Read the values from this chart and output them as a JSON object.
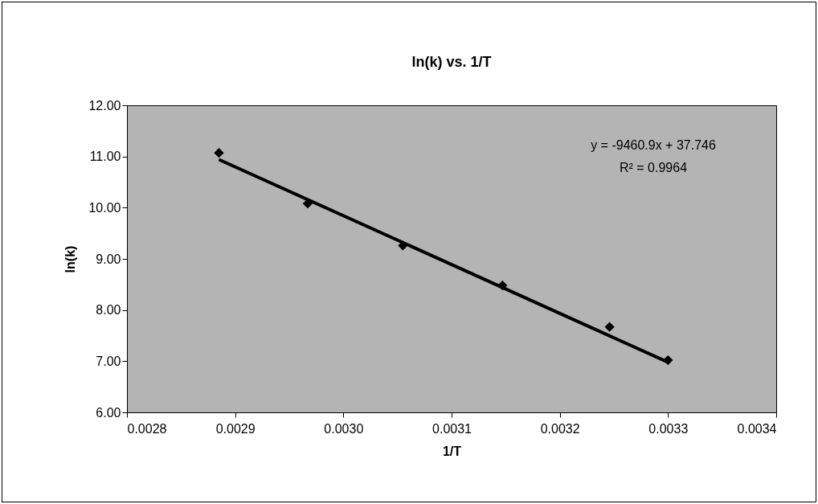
{
  "chart_data": {
    "type": "scatter",
    "title": "ln(k) vs. 1/T",
    "xlabel": "1/T",
    "ylabel": "ln(k)",
    "series": [
      {
        "color": "#000000",
        "marker": "diamond",
        "x": [
          0.002885,
          0.002967,
          0.003055,
          0.003147,
          0.003246,
          0.0033
        ],
        "values": [
          11.07,
          10.08,
          9.26,
          8.48,
          7.67,
          7.02
        ]
      },
      {
        "type": "line",
        "color": "#000000",
        "line_style": "solid",
        "x": [
          0.002885,
          0.0033
        ],
        "values": [
          10.94,
          6.98
        ]
      }
    ],
    "grid": false,
    "xlim": [
      0.0028,
      0.0034
    ],
    "ylim": [
      6,
      12
    ],
    "xticks": [
      0.0028,
      0.0029,
      {
        "value": 0.003,
        "label": "0.0030"
      },
      0.0031,
      0.0032,
      0.0033,
      0.0034
    ],
    "yticks": [
      {
        "value": 6,
        "label": "6.00"
      },
      {
        "value": 7,
        "label": "7.00"
      },
      {
        "value": 8,
        "label": "8.00"
      },
      {
        "value": 9,
        "label": "9.00"
      },
      {
        "value": 10,
        "label": "10.00"
      },
      {
        "value": 11,
        "label": "11.00"
      },
      {
        "value": 12,
        "label": "12.00"
      }
    ],
    "annotations": [
      "y = -9460.9x + 37.746",
      "R² = 0.9964"
    ]
  }
}
